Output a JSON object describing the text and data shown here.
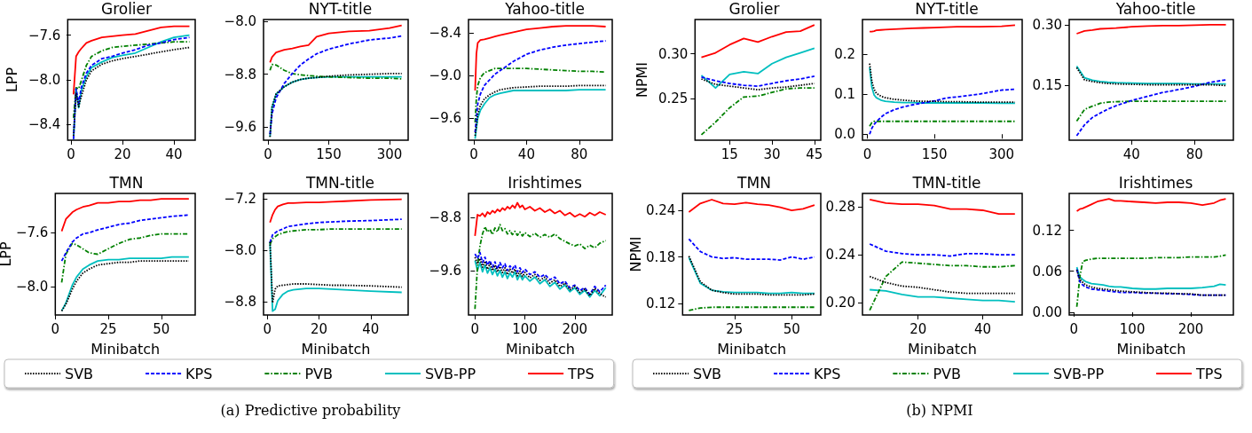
{
  "chart_data": [
    {
      "type": "line",
      "title": "Grolier",
      "ylabel": "LPP",
      "xlim": [
        -1.25,
        48.25
      ],
      "xticks": [
        0,
        20,
        40
      ],
      "ylim": [
        -8.54,
        -7.46
      ],
      "yticks": [
        {
          "value": -8.4,
          "label": "−8.4"
        },
        {
          "value": -8.0,
          "label": "−8.0"
        },
        {
          "value": -7.6,
          "label": "−7.6"
        }
      ],
      "x": [
        1,
        2,
        3,
        4,
        6,
        8,
        12,
        16,
        20,
        25,
        30,
        35,
        40,
        46
      ],
      "series": [
        {
          "color": "#000000",
          "line_style": "dotted",
          "values": [
            -8.5,
            -8.12,
            -8.24,
            -8.15,
            -8.0,
            -7.92,
            -7.86,
            -7.83,
            -7.81,
            -7.79,
            -7.77,
            -7.75,
            -7.73,
            -7.71
          ]
        },
        {
          "color": "#0000ff",
          "line_style": "dashed",
          "values": [
            -8.53,
            -8.08,
            -8.21,
            -8.07,
            -7.94,
            -7.87,
            -7.81,
            -7.79,
            -7.76,
            -7.73,
            -7.69,
            -7.67,
            -7.64,
            -7.62
          ]
        },
        {
          "color": "#008000",
          "line_style": "dashdot",
          "values": [
            -8.34,
            -8.07,
            -8.08,
            -8.01,
            -7.87,
            -7.79,
            -7.74,
            -7.71,
            -7.7,
            -7.69,
            -7.68,
            -7.67,
            -7.66,
            -7.66
          ]
        },
        {
          "color": "#00bfbf",
          "line_style": "solid",
          "values": [
            -8.53,
            -8.08,
            -8.25,
            -8.1,
            -7.97,
            -7.89,
            -7.84,
            -7.8,
            -7.78,
            -7.76,
            -7.71,
            -7.66,
            -7.62,
            -7.6
          ]
        },
        {
          "color": "#ff0000",
          "line_style": "solid",
          "values": [
            -8.13,
            -7.79,
            -7.75,
            -7.72,
            -7.67,
            -7.65,
            -7.62,
            -7.61,
            -7.6,
            -7.59,
            -7.56,
            -7.53,
            -7.52,
            -7.52
          ]
        }
      ]
    },
    {
      "type": "line",
      "title": "NYT-title",
      "xlim": [
        -11,
        346
      ],
      "xticks": [
        0,
        150,
        300
      ],
      "ylim": [
        -9.8,
        -7.97
      ],
      "yticks": [
        {
          "value": -9.6,
          "label": "−9.6"
        },
        {
          "value": -8.8,
          "label": "−8.8"
        },
        {
          "value": -8.0,
          "label": "−8.0"
        }
      ],
      "x": [
        5,
        10,
        20,
        40,
        60,
        80,
        100,
        120,
        150,
        200,
        250,
        300,
        330
      ],
      "series": [
        {
          "color": "#000000",
          "line_style": "dotted",
          "values": [
            -9.75,
            -9.3,
            -9.1,
            -8.99,
            -8.92,
            -8.88,
            -8.86,
            -8.85,
            -8.83,
            -8.81,
            -8.8,
            -8.79,
            -8.79
          ]
        },
        {
          "color": "#0000ff",
          "line_style": "dashed",
          "values": [
            -9.71,
            -9.4,
            -9.16,
            -8.94,
            -8.79,
            -8.66,
            -8.57,
            -8.49,
            -8.42,
            -8.34,
            -8.28,
            -8.25,
            -8.22
          ]
        },
        {
          "color": "#008000",
          "line_style": "dashdot",
          "values": [
            -8.74,
            -8.65,
            -8.66,
            -8.74,
            -8.79,
            -8.81,
            -8.82,
            -8.83,
            -8.84,
            -8.85,
            -8.86,
            -8.86,
            -8.87
          ]
        },
        {
          "color": "#00bfbf",
          "line_style": "solid",
          "values": [
            -9.75,
            -9.3,
            -9.1,
            -8.99,
            -8.92,
            -8.88,
            -8.86,
            -8.85,
            -8.84,
            -8.84,
            -8.84,
            -8.84,
            -8.84
          ]
        },
        {
          "color": "#ff0000",
          "line_style": "solid",
          "values": [
            -8.62,
            -8.54,
            -8.47,
            -8.43,
            -8.41,
            -8.38,
            -8.36,
            -8.23,
            -8.18,
            -8.15,
            -8.14,
            -8.1,
            -8.06
          ]
        }
      ]
    },
    {
      "type": "line",
      "title": "Yahoo-title",
      "xlim": [
        -4,
        105
      ],
      "xticks": [
        0,
        40,
        80
      ],
      "ylim": [
        -9.91,
        -8.21
      ],
      "yticks": [
        {
          "value": -9.6,
          "label": "−9.6"
        },
        {
          "value": -9.0,
          "label": "−9.0"
        },
        {
          "value": -8.4,
          "label": "−8.4"
        }
      ],
      "x": [
        1,
        2,
        3,
        5,
        8,
        12,
        16,
        20,
        30,
        40,
        50,
        60,
        70,
        80,
        90,
        100
      ],
      "series": [
        {
          "color": "#000000",
          "line_style": "dotted",
          "values": [
            -9.85,
            -9.7,
            -9.55,
            -9.42,
            -9.33,
            -9.27,
            -9.23,
            -9.2,
            -9.17,
            -9.16,
            -9.15,
            -9.15,
            -9.15,
            -9.14,
            -9.14,
            -9.14
          ]
        },
        {
          "color": "#0000ff",
          "line_style": "dashed",
          "values": [
            -9.8,
            -9.6,
            -9.4,
            -9.26,
            -9.14,
            -9.06,
            -8.98,
            -8.93,
            -8.8,
            -8.7,
            -8.64,
            -8.6,
            -8.57,
            -8.55,
            -8.53,
            -8.51
          ]
        },
        {
          "color": "#008000",
          "line_style": "dashdot",
          "values": [
            -9.66,
            -9.31,
            -9.14,
            -9.03,
            -8.96,
            -8.93,
            -8.9,
            -8.9,
            -8.9,
            -8.9,
            -8.91,
            -8.92,
            -8.93,
            -8.94,
            -8.94,
            -8.95
          ]
        },
        {
          "color": "#00bfbf",
          "line_style": "solid",
          "values": [
            -9.89,
            -9.74,
            -9.6,
            -9.49,
            -9.4,
            -9.31,
            -9.27,
            -9.25,
            -9.21,
            -9.21,
            -9.21,
            -9.21,
            -9.21,
            -9.2,
            -9.2,
            -9.2
          ]
        },
        {
          "color": "#ff0000",
          "line_style": "solid",
          "values": [
            -9.21,
            -8.69,
            -8.54,
            -8.5,
            -8.49,
            -8.47,
            -8.45,
            -8.43,
            -8.39,
            -8.35,
            -8.33,
            -8.31,
            -8.3,
            -8.3,
            -8.3,
            -8.31
          ]
        }
      ]
    },
    {
      "type": "line",
      "title": "TMN",
      "xlabel": "Minibatch",
      "ylabel": "LPP",
      "legend": "bottom",
      "xlim": [
        0,
        66
      ],
      "xticks": [
        0,
        25,
        50
      ],
      "ylim": [
        -8.21,
        -7.31
      ],
      "yticks": [
        {
          "value": -8.0,
          "label": "−8.0"
        },
        {
          "value": -7.6,
          "label": "−7.6"
        }
      ],
      "x": [
        3,
        5,
        8,
        10,
        13,
        16,
        20,
        25,
        30,
        35,
        40,
        45,
        50,
        55,
        63
      ],
      "series": [
        {
          "name": "SVB",
          "color": "#000000",
          "line_style": "dotted",
          "values": [
            -8.18,
            -8.13,
            -8.02,
            -7.96,
            -7.9,
            -7.87,
            -7.84,
            -7.83,
            -7.82,
            -7.82,
            -7.81,
            -7.81,
            -7.81,
            -7.81,
            -7.81
          ]
        },
        {
          "name": "KPS",
          "color": "#0000ff",
          "line_style": "dashed",
          "values": [
            -7.81,
            -7.75,
            -7.67,
            -7.64,
            -7.61,
            -7.6,
            -7.58,
            -7.56,
            -7.54,
            -7.53,
            -7.51,
            -7.5,
            -7.49,
            -7.48,
            -7.47
          ]
        },
        {
          "name": "PVB",
          "color": "#008000",
          "line_style": "dashdot",
          "values": [
            -7.97,
            -7.76,
            -7.68,
            -7.69,
            -7.72,
            -7.75,
            -7.76,
            -7.72,
            -7.68,
            -7.65,
            -7.64,
            -7.62,
            -7.61,
            -7.61,
            -7.61
          ]
        },
        {
          "name": "SVB-PP",
          "color": "#00bfbf",
          "line_style": "solid",
          "values": [
            -8.18,
            -8.12,
            -7.99,
            -7.93,
            -7.87,
            -7.84,
            -7.81,
            -7.8,
            -7.8,
            -7.79,
            -7.79,
            -7.79,
            -7.79,
            -7.78,
            -7.78
          ]
        },
        {
          "name": "TPS",
          "color": "#ff0000",
          "line_style": "solid",
          "values": [
            -7.59,
            -7.5,
            -7.45,
            -7.43,
            -7.41,
            -7.4,
            -7.38,
            -7.38,
            -7.37,
            -7.37,
            -7.36,
            -7.36,
            -7.35,
            -7.35,
            -7.35
          ]
        }
      ]
    },
    {
      "type": "line",
      "title": "TMN-title",
      "xlabel": "Minibatch",
      "annotations": [
        "(a) Predictive probability"
      ],
      "xlim": [
        -1.5,
        54.5
      ],
      "xticks": [
        0,
        20,
        40
      ],
      "ylim": [
        -9.0,
        -7.12
      ],
      "yticks": [
        {
          "value": -8.8,
          "label": "−8.8"
        },
        {
          "value": -8.0,
          "label": "−8.0"
        },
        {
          "value": -7.2,
          "label": "−7.2"
        }
      ],
      "x": [
        1,
        2,
        3,
        4,
        6,
        8,
        10,
        15,
        20,
        25,
        30,
        40,
        52
      ],
      "series": [
        {
          "color": "#000000",
          "line_style": "dotted",
          "values": [
            -7.87,
            -8.81,
            -8.6,
            -8.55,
            -8.54,
            -8.53,
            -8.52,
            -8.52,
            -8.53,
            -8.54,
            -8.54,
            -8.55,
            -8.57
          ]
        },
        {
          "color": "#0000ff",
          "line_style": "dashed",
          "values": [
            -7.88,
            -7.76,
            -7.73,
            -7.7,
            -7.67,
            -7.63,
            -7.62,
            -7.59,
            -7.57,
            -7.56,
            -7.55,
            -7.54,
            -7.52
          ]
        },
        {
          "color": "#008000",
          "line_style": "dashdot",
          "values": [
            -7.91,
            -7.82,
            -7.79,
            -7.76,
            -7.73,
            -7.71,
            -7.7,
            -7.68,
            -7.68,
            -7.67,
            -7.67,
            -7.67,
            -7.67
          ]
        },
        {
          "color": "#00bfbf",
          "line_style": "solid",
          "values": [
            -7.87,
            -8.94,
            -8.91,
            -8.78,
            -8.68,
            -8.63,
            -8.61,
            -8.59,
            -8.59,
            -8.6,
            -8.61,
            -8.63,
            -8.65
          ]
        },
        {
          "color": "#ff0000",
          "line_style": "solid",
          "values": [
            -7.57,
            -7.45,
            -7.37,
            -7.32,
            -7.29,
            -7.27,
            -7.27,
            -7.26,
            -7.26,
            -7.25,
            -7.24,
            -7.22,
            -7.21
          ]
        }
      ]
    },
    {
      "type": "line",
      "title": "Irishtimes",
      "xlabel": "Minibatch",
      "xlim": [
        -13,
        275
      ],
      "xticks": [
        0,
        100,
        200
      ],
      "ylim": [
        -10.27,
        -8.44
      ],
      "yticks": [
        {
          "value": -9.6,
          "label": "−9.6"
        },
        {
          "value": -8.8,
          "label": "−8.8"
        }
      ],
      "x": [
        0,
        5,
        10,
        15,
        20,
        25,
        30,
        35,
        40,
        45,
        50,
        55,
        60,
        65,
        70,
        75,
        80,
        85,
        90,
        95,
        100,
        110,
        120,
        130,
        140,
        150,
        160,
        170,
        180,
        190,
        200,
        210,
        220,
        230,
        240,
        250,
        262
      ],
      "series": [
        {
          "color": "#000000",
          "line_style": "dotted",
          "values": [
            -9.4,
            -9.5,
            -9.42,
            -9.55,
            -9.46,
            -9.58,
            -9.5,
            -9.6,
            -9.52,
            -9.62,
            -9.54,
            -9.63,
            -9.56,
            -9.66,
            -9.58,
            -9.64,
            -9.58,
            -9.68,
            -9.61,
            -9.69,
            -9.63,
            -9.71,
            -9.66,
            -9.75,
            -9.7,
            -9.79,
            -9.74,
            -9.84,
            -9.79,
            -9.89,
            -9.84,
            -9.93,
            -9.88,
            -9.98,
            -9.87,
            -9.95,
            -10.0
          ]
        },
        {
          "color": "#0000ff",
          "line_style": "dashed",
          "values": [
            -9.35,
            -9.42,
            -9.33,
            -9.48,
            -9.4,
            -9.52,
            -9.45,
            -9.55,
            -9.47,
            -9.58,
            -9.48,
            -9.56,
            -9.5,
            -9.6,
            -9.53,
            -9.58,
            -9.52,
            -9.62,
            -9.56,
            -9.63,
            -9.58,
            -9.66,
            -9.62,
            -9.7,
            -9.66,
            -9.74,
            -9.7,
            -9.8,
            -9.76,
            -9.86,
            -9.82,
            -9.9,
            -9.86,
            -9.96,
            -9.84,
            -9.92,
            -9.82
          ]
        },
        {
          "color": "#008000",
          "line_style": "dashdot",
          "values": [
            -10.18,
            -9.53,
            -9.23,
            -9.05,
            -8.94,
            -9.02,
            -8.98,
            -9.06,
            -8.96,
            -9.02,
            -8.91,
            -9.0,
            -8.97,
            -9.05,
            -9.0,
            -9.06,
            -9.01,
            -9.07,
            -9.02,
            -9.08,
            -9.03,
            -9.09,
            -9.04,
            -9.1,
            -9.06,
            -9.1,
            -9.05,
            -9.12,
            -9.16,
            -9.2,
            -9.23,
            -9.2,
            -9.27,
            -9.22,
            -9.26,
            -9.19,
            -9.15
          ]
        },
        {
          "color": "#00bfbf",
          "line_style": "solid",
          "values": [
            -9.45,
            -9.6,
            -9.48,
            -9.62,
            -9.52,
            -9.64,
            -9.56,
            -9.66,
            -9.58,
            -9.68,
            -9.6,
            -9.7,
            -9.62,
            -9.72,
            -9.64,
            -9.7,
            -9.62,
            -9.74,
            -9.66,
            -9.74,
            -9.68,
            -9.76,
            -9.7,
            -9.8,
            -9.74,
            -9.84,
            -9.78,
            -9.88,
            -9.82,
            -9.92,
            -9.86,
            -9.96,
            -9.9,
            -10.0,
            -9.9,
            -9.98,
            -9.86
          ]
        },
        {
          "color": "#ff0000",
          "line_style": "solid",
          "values": [
            -9.08,
            -8.76,
            -8.78,
            -8.74,
            -8.79,
            -8.72,
            -8.75,
            -8.7,
            -8.73,
            -8.68,
            -8.71,
            -8.66,
            -8.69,
            -8.64,
            -8.67,
            -8.62,
            -8.66,
            -8.58,
            -8.65,
            -8.62,
            -8.68,
            -8.64,
            -8.7,
            -8.66,
            -8.72,
            -8.68,
            -8.74,
            -8.7,
            -8.77,
            -8.73,
            -8.79,
            -8.75,
            -8.79,
            -8.73,
            -8.77,
            -8.72,
            -8.76
          ]
        }
      ]
    },
    {
      "type": "line",
      "title": "Grolier",
      "ylabel": "NPMI",
      "xlim": [
        2.75,
        47.25
      ],
      "xticks": [
        15,
        30,
        45
      ],
      "ylim": [
        0.204,
        0.338
      ],
      "yticks": [
        0.25,
        {
          "value": 0.3,
          "label": "0.30"
        }
      ],
      "x": [
        5,
        10,
        15,
        20,
        25,
        30,
        35,
        40,
        45
      ],
      "series": [
        {
          "color": "#000000",
          "line_style": "dotted",
          "values": [
            0.272,
            0.266,
            0.264,
            0.262,
            0.26,
            0.262,
            0.263,
            0.265,
            0.267
          ]
        },
        {
          "color": "#0000ff",
          "line_style": "dashed",
          "values": [
            0.274,
            0.27,
            0.267,
            0.265,
            0.264,
            0.267,
            0.27,
            0.272,
            0.275
          ]
        },
        {
          "color": "#008000",
          "line_style": "dashdot",
          "values": [
            0.21,
            0.224,
            0.24,
            0.252,
            0.253,
            0.257,
            0.261,
            0.262,
            0.262
          ]
        },
        {
          "color": "#00bfbf",
          "line_style": "solid",
          "values": [
            0.276,
            0.262,
            0.277,
            0.28,
            0.278,
            0.289,
            0.296,
            0.301,
            0.306
          ]
        },
        {
          "color": "#ff0000",
          "line_style": "solid",
          "values": [
            0.296,
            0.301,
            0.31,
            0.317,
            0.313,
            0.319,
            0.324,
            0.325,
            0.332
          ]
        }
      ]
    },
    {
      "type": "line",
      "title": "NYT-title",
      "xlim": [
        -11,
        346
      ],
      "xticks": [
        0,
        150,
        300
      ],
      "ylim": [
        -0.015,
        0.286
      ],
      "yticks": [
        {
          "value": 0,
          "label": "0.0"
        },
        0.1,
        0.2
      ],
      "x": [
        5,
        10,
        15,
        20,
        30,
        40,
        60,
        80,
        100,
        125,
        150,
        175,
        200,
        250,
        300,
        330
      ],
      "series": [
        {
          "color": "#000000",
          "line_style": "dotted",
          "values": [
            0.176,
            0.132,
            0.112,
            0.102,
            0.095,
            0.091,
            0.087,
            0.085,
            0.083,
            0.082,
            0.082,
            0.081,
            0.081,
            0.08,
            0.08,
            0.08
          ]
        },
        {
          "color": "#0000ff",
          "line_style": "dashed",
          "values": [
            0.0,
            0.015,
            0.024,
            0.031,
            0.042,
            0.051,
            0.061,
            0.068,
            0.073,
            0.078,
            0.083,
            0.09,
            0.093,
            0.1,
            0.11,
            0.112
          ]
        },
        {
          "color": "#008000",
          "line_style": "dashdot",
          "values": [
            0.02,
            0.029,
            0.032,
            0.032,
            0.032,
            0.032,
            0.032,
            0.032,
            0.032,
            0.032,
            0.032,
            0.032,
            0.032,
            0.032,
            0.032,
            0.032
          ]
        },
        {
          "color": "#00bfbf",
          "line_style": "solid",
          "values": [
            0.166,
            0.117,
            0.098,
            0.091,
            0.085,
            0.082,
            0.08,
            0.079,
            0.079,
            0.078,
            0.078,
            0.078,
            0.078,
            0.078,
            0.077,
            0.077
          ]
        },
        {
          "color": "#ff0000",
          "line_style": "solid",
          "values": [
            0.256,
            0.256,
            0.257,
            0.259,
            0.26,
            0.261,
            0.262,
            0.263,
            0.264,
            0.265,
            0.266,
            0.267,
            0.268,
            0.268,
            0.269,
            0.272
          ]
        }
      ]
    },
    {
      "type": "line",
      "title": "Yahoo-title",
      "xlim": [
        0.25,
        104.75
      ],
      "xticks": [
        40,
        80
      ],
      "ylim": [
        0.015,
        0.313
      ],
      "yticks": [
        0.15,
        {
          "value": 0.3,
          "label": "0.30"
        }
      ],
      "x": [
        5,
        10,
        15,
        20,
        25,
        30,
        40,
        50,
        60,
        70,
        80,
        90,
        100
      ],
      "series": [
        {
          "color": "#000000",
          "line_style": "dotted",
          "values": [
            0.194,
            0.164,
            0.16,
            0.157,
            0.155,
            0.154,
            0.153,
            0.152,
            0.152,
            0.152,
            0.152,
            0.152,
            0.15
          ]
        },
        {
          "color": "#0000ff",
          "line_style": "dashed",
          "values": [
            0.026,
            0.053,
            0.071,
            0.082,
            0.092,
            0.1,
            0.113,
            0.123,
            0.133,
            0.14,
            0.148,
            0.158,
            0.164
          ]
        },
        {
          "color": "#008000",
          "line_style": "dashdot",
          "values": [
            0.062,
            0.091,
            0.099,
            0.106,
            0.109,
            0.11,
            0.111,
            0.111,
            0.111,
            0.111,
            0.111,
            0.111,
            0.111
          ]
        },
        {
          "color": "#00bfbf",
          "line_style": "solid",
          "values": [
            0.198,
            0.169,
            0.163,
            0.16,
            0.158,
            0.157,
            0.156,
            0.155,
            0.155,
            0.155,
            0.154,
            0.154,
            0.154
          ]
        },
        {
          "color": "#ff0000",
          "line_style": "solid",
          "values": [
            0.278,
            0.285,
            0.287,
            0.29,
            0.291,
            0.292,
            0.295,
            0.297,
            0.298,
            0.298,
            0.299,
            0.3,
            0.3
          ]
        }
      ]
    },
    {
      "type": "line",
      "title": "TMN",
      "xlabel": "Minibatch",
      "ylabel": "NPMI",
      "legend": "bottom",
      "xlim": [
        2.25,
        62.75
      ],
      "xticks": [
        25,
        50
      ],
      "ylim": [
        0.105,
        0.262
      ],
      "yticks": [
        0.12,
        0.18,
        0.24
      ],
      "x": [
        5,
        10,
        15,
        20,
        25,
        30,
        35,
        40,
        45,
        50,
        55,
        60
      ],
      "series": [
        {
          "name": "SVB",
          "color": "#000000",
          "line_style": "dotted",
          "values": [
            0.181,
            0.148,
            0.137,
            0.134,
            0.132,
            0.132,
            0.132,
            0.131,
            0.131,
            0.131,
            0.131,
            0.132
          ]
        },
        {
          "name": "KPS",
          "color": "#0000ff",
          "line_style": "dashed",
          "values": [
            0.203,
            0.187,
            0.18,
            0.178,
            0.179,
            0.177,
            0.177,
            0.177,
            0.176,
            0.18,
            0.177,
            0.18
          ]
        },
        {
          "name": "PVB",
          "color": "#008000",
          "line_style": "dashdot",
          "values": [
            0.111,
            0.114,
            0.115,
            0.115,
            0.115,
            0.115,
            0.115,
            0.115,
            0.115,
            0.115,
            0.115,
            0.115
          ]
        },
        {
          "name": "SVB-PP",
          "color": "#00bfbf",
          "line_style": "solid",
          "values": [
            0.179,
            0.146,
            0.137,
            0.135,
            0.134,
            0.134,
            0.134,
            0.133,
            0.133,
            0.134,
            0.133,
            0.133
          ]
        },
        {
          "name": "TPS",
          "color": "#ff0000",
          "line_style": "solid",
          "values": [
            0.238,
            0.249,
            0.254,
            0.249,
            0.248,
            0.25,
            0.248,
            0.247,
            0.244,
            0.24,
            0.242,
            0.247
          ]
        }
      ]
    },
    {
      "type": "line",
      "title": "TMN-title",
      "xlabel": "Minibatch",
      "annotations": [
        "(b) NPMI"
      ],
      "xlim": [
        2.75,
        52.25
      ],
      "xticks": [
        20,
        40
      ],
      "ylim": [
        0.19,
        0.291
      ],
      "yticks": [
        {
          "value": 0.2,
          "label": "0.20"
        },
        0.24,
        0.28
      ],
      "x": [
        5,
        10,
        15,
        20,
        25,
        30,
        35,
        40,
        45,
        50
      ],
      "series": [
        {
          "color": "#000000",
          "line_style": "dotted",
          "values": [
            0.222,
            0.217,
            0.214,
            0.213,
            0.211,
            0.209,
            0.208,
            0.208,
            0.208,
            0.208
          ]
        },
        {
          "color": "#0000ff",
          "line_style": "dashed",
          "values": [
            0.249,
            0.243,
            0.241,
            0.24,
            0.24,
            0.239,
            0.241,
            0.241,
            0.24,
            0.24
          ]
        },
        {
          "color": "#008000",
          "line_style": "dashdot",
          "values": [
            0.194,
            0.222,
            0.234,
            0.233,
            0.232,
            0.231,
            0.231,
            0.23,
            0.23,
            0.231
          ]
        },
        {
          "color": "#00bfbf",
          "line_style": "solid",
          "values": [
            0.211,
            0.21,
            0.207,
            0.205,
            0.205,
            0.204,
            0.203,
            0.202,
            0.202,
            0.201
          ]
        },
        {
          "color": "#ff0000",
          "line_style": "solid",
          "values": [
            0.286,
            0.283,
            0.282,
            0.282,
            0.281,
            0.278,
            0.278,
            0.277,
            0.274,
            0.274
          ]
        }
      ]
    },
    {
      "type": "line",
      "title": "Irishtimes",
      "xlabel": "Minibatch",
      "xlim": [
        -8,
        273
      ],
      "xticks": [
        0,
        100,
        200
      ],
      "ylim": [
        -0.004,
        0.174
      ],
      "yticks": [
        {
          "value": 0,
          "label": "0.00"
        },
        0.06,
        0.12
      ],
      "x": [
        5,
        10,
        15,
        20,
        30,
        40,
        50,
        60,
        70,
        80,
        100,
        120,
        140,
        160,
        180,
        200,
        220,
        240,
        250,
        260
      ],
      "series": [
        {
          "color": "#000000",
          "line_style": "dotted",
          "values": [
            0.062,
            0.048,
            0.044,
            0.04,
            0.037,
            0.035,
            0.034,
            0.033,
            0.032,
            0.031,
            0.03,
            0.029,
            0.028,
            0.028,
            0.027,
            0.027,
            0.025,
            0.025,
            0.025,
            0.025
          ]
        },
        {
          "color": "#0000ff",
          "line_style": "dashed",
          "values": [
            0.063,
            0.045,
            0.04,
            0.037,
            0.034,
            0.033,
            0.032,
            0.031,
            0.03,
            0.029,
            0.029,
            0.028,
            0.028,
            0.027,
            0.027,
            0.026,
            0.025,
            0.025,
            0.025,
            0.025
          ]
        },
        {
          "color": "#008000",
          "line_style": "dashdot",
          "values": [
            0.008,
            0.051,
            0.074,
            0.076,
            0.078,
            0.079,
            0.079,
            0.079,
            0.079,
            0.079,
            0.079,
            0.079,
            0.08,
            0.08,
            0.08,
            0.081,
            0.081,
            0.081,
            0.082,
            0.084
          ]
        },
        {
          "color": "#00bfbf",
          "line_style": "solid",
          "values": [
            0.066,
            0.052,
            0.048,
            0.045,
            0.042,
            0.041,
            0.04,
            0.038,
            0.037,
            0.037,
            0.035,
            0.034,
            0.034,
            0.035,
            0.035,
            0.035,
            0.036,
            0.038,
            0.041,
            0.04
          ]
        },
        {
          "color": "#ff0000",
          "line_style": "solid",
          "values": [
            0.148,
            0.151,
            0.152,
            0.154,
            0.158,
            0.162,
            0.164,
            0.166,
            0.163,
            0.163,
            0.162,
            0.161,
            0.16,
            0.161,
            0.161,
            0.16,
            0.157,
            0.16,
            0.164,
            0.166
          ]
        }
      ]
    }
  ]
}
